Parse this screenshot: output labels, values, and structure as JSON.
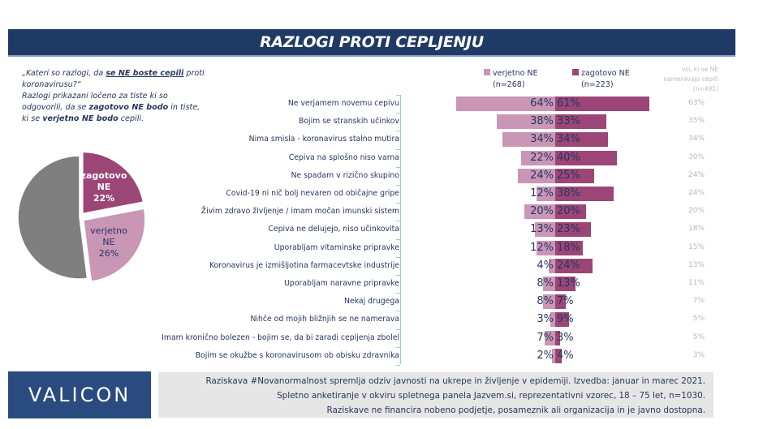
{
  "title": "RAZLOGI PROTI CEPLJENJU",
  "question": {
    "p1": "„Kateri so razlogi, da ",
    "p1u": "se NE boste cepili",
    "p1b": " proti koronavirusu?“",
    "p2": "Razlogi prikazani ločeno za tiste ki so odgovorili, da se ",
    "p2b": "zagotovo NE bodo",
    "p3": " in tiste, ki se ",
    "p3b": "verjetno NE bodo",
    "p4": " cepili."
  },
  "legend": {
    "verjetno": "verjetno NE",
    "verjetno_n": "(n=268)",
    "zagotovo": "zagotovo NE",
    "zagotovo_n": "(n=223)",
    "all_header": "vsi, ki se NE nameravajo cepiti (n=491)"
  },
  "colors": {
    "verjetno": "#c996b6",
    "zagotovo": "#9b4677",
    "other": "#7f7f7f",
    "title_bg": "#203a66"
  },
  "pie": {
    "slices": [
      {
        "label": "zagotovo NE",
        "value": 22,
        "text": "22%"
      },
      {
        "label": "verjetno NE",
        "value": 26,
        "text": "26%"
      },
      {
        "label": "",
        "value": 52,
        "text": ""
      }
    ],
    "lab1a": "zagotovo",
    "lab1b": "NE",
    "lab2a": "verjetno",
    "lab2b": "NE"
  },
  "chart_data": {
    "type": "bar",
    "orientation": "horizontal-diverging",
    "categories": [
      "Ne verjamem novemu cepivu",
      "Bojim se stranskih učinkov",
      "Nima smisla - koronavirus stalno mutira",
      "Cepiva na splošno niso varna",
      "Ne spadam v rizično skupino",
      "Covid-19 ni nič bolj nevaren od običajne gripe",
      "Živim zdravo življenje / imam močan imunski sistem",
      "Cepiva ne delujejo, niso učinkovita",
      "Uporabljam vitaminske pripravke",
      "Koronavirus je izmišljotina farmacevtske industrije",
      "Uporabljam naravne pripravke",
      "Nekaj drugega",
      "Nihče od mojih bližnjih se ne namerava",
      "Imam kronično bolezen - bojim se, da bi zaradi cepljenja zbolel",
      "Bojim se okužbe s koronavirusom ob obisku zdravnika"
    ],
    "series": [
      {
        "name": "verjetno NE (n=268)",
        "values": [
          64,
          38,
          34,
          22,
          24,
          12,
          20,
          13,
          12,
          4,
          8,
          8,
          3,
          7,
          2
        ]
      },
      {
        "name": "zagotovo NE (n=223)",
        "values": [
          61,
          33,
          34,
          40,
          25,
          38,
          20,
          23,
          18,
          24,
          13,
          7,
          9,
          3,
          4
        ]
      },
      {
        "name": "vsi, ki se NE nameravajo cepiti (n=491)",
        "values": [
          63,
          35,
          34,
          30,
          24,
          24,
          20,
          18,
          15,
          13,
          11,
          7,
          5,
          5,
          3
        ]
      }
    ]
  },
  "footer": {
    "logo": "VALICON",
    "line1": "Raziskava #Novanormalnost spremlja odziv javnosti na ukrepe in življenje v epidemiji. Izvedba: januar in marec 2021.",
    "line2": "Spletno anketiranje v okviru spletnega panela Jazvem.si, reprezentativni vzorec, 18 – 75 let, n=1030.",
    "line3": "Raziskave ne financira nobeno podjetje, posameznik ali organizacija in je javno dostopna."
  }
}
